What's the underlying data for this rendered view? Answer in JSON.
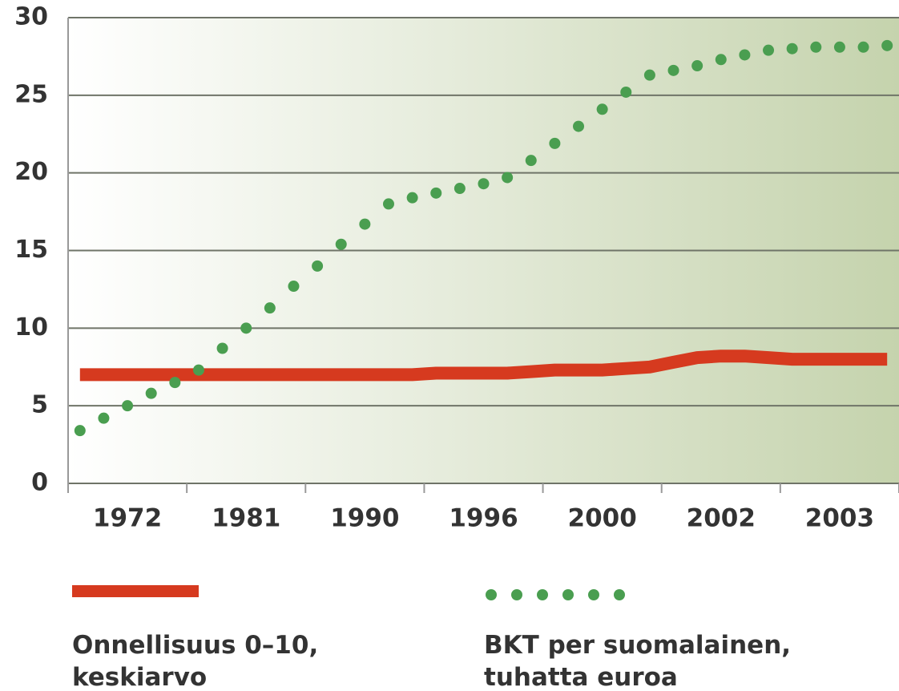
{
  "chart_data": {
    "type": "line",
    "categories": [
      null,
      null,
      "1972",
      null,
      null,
      null,
      null,
      "1981",
      null,
      null,
      null,
      null,
      "1990",
      null,
      null,
      null,
      null,
      "1996",
      null,
      null,
      null,
      null,
      "2000",
      null,
      null,
      null,
      null,
      "2002",
      null,
      null,
      null,
      null,
      "2003",
      null,
      null
    ],
    "series": [
      {
        "name": "Onnellisuus 0–10, keskiarvo",
        "color": "#d63a1f",
        "style": "solid",
        "values": [
          7.0,
          7.0,
          7.0,
          7.0,
          7.0,
          7.0,
          7.0,
          7.0,
          7.0,
          7.0,
          7.0,
          7.0,
          7.0,
          7.0,
          7.0,
          7.1,
          7.1,
          7.1,
          7.1,
          7.2,
          7.3,
          7.3,
          7.3,
          7.4,
          7.5,
          7.8,
          8.1,
          8.2,
          8.2,
          8.1,
          8.0,
          8.0,
          8.0,
          8.0,
          8.0
        ]
      },
      {
        "name": "BKT per suomalainen, tuhatta euroa",
        "color": "#4a9e50",
        "style": "dotted",
        "values": [
          3.4,
          4.2,
          5.0,
          5.8,
          6.5,
          7.3,
          8.7,
          10.0,
          11.3,
          12.7,
          14.0,
          15.4,
          16.7,
          18.0,
          18.4,
          18.7,
          19.0,
          19.3,
          19.7,
          20.8,
          21.9,
          23.0,
          24.1,
          25.2,
          26.3,
          26.6,
          26.9,
          27.3,
          27.6,
          27.9,
          28.0,
          28.1,
          28.1,
          28.1,
          28.2
        ]
      }
    ],
    "ylim": [
      0,
      30
    ],
    "yticks": [
      0,
      5,
      10,
      15,
      20,
      25,
      30
    ],
    "grid": true,
    "legend": "bottom"
  }
}
